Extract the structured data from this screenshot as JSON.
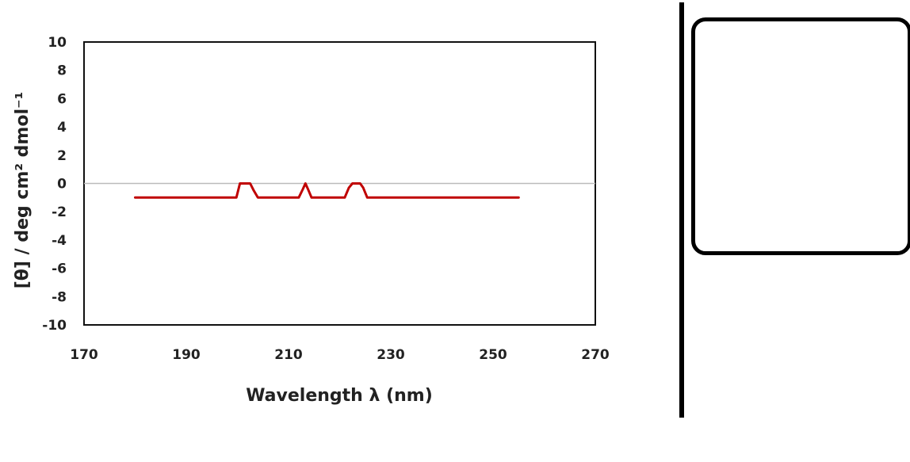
{
  "chart_data": {
    "type": "line",
    "title": "",
    "xlabel": "Wavelength  λ (nm)",
    "ylabel": "[θ] / deg cm² dmol⁻¹",
    "xlim": [
      170,
      270
    ],
    "ylim": [
      -10,
      10
    ],
    "x_ticks": [
      "170",
      "190",
      "210",
      "230",
      "250",
      "270"
    ],
    "y_ticks": [
      "10",
      "8",
      "6",
      "4",
      "2",
      "0",
      "-2",
      "-4",
      "-6",
      "-8",
      "-10"
    ],
    "grid": false,
    "legend": "none",
    "series": [
      {
        "color": "#c00000",
        "x": [
          180,
          196,
          199.8,
          200.5,
          202,
          202.5,
          203.2,
          204,
          212,
          212.8,
          213.3,
          213.8,
          214.5,
          221,
          221.8,
          222.5,
          224,
          224.6,
          225.4,
          240,
          255
        ],
        "y": [
          -1,
          -1,
          -1,
          0,
          0,
          0,
          -0.5,
          -1,
          -1,
          -0.4,
          0,
          -0.4,
          -1,
          -1,
          -0.3,
          0,
          0,
          -0.3,
          -1,
          -1,
          -1
        ]
      }
    ],
    "zero_line_color": "#bbbbbb",
    "frame_color": "#111111"
  },
  "colors": {
    "divider": "#000000",
    "panel_border": "#000000"
  }
}
